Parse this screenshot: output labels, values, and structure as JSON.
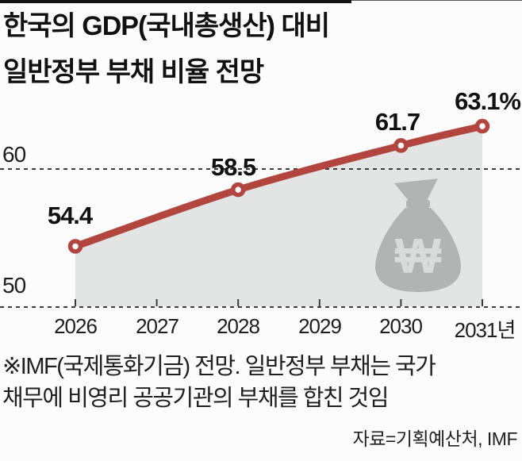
{
  "title": {
    "line1": "한국의 GDP(국내총생산) 대비",
    "line2": "일반정부 부채 비율 전망"
  },
  "chart_data": {
    "type": "area",
    "title": "한국의 GDP(국내총생산) 대비 일반정부 부채 비율 전망",
    "x": [
      2026,
      2027,
      2028,
      2029,
      2030,
      2031
    ],
    "x_labels": [
      "2026",
      "2027",
      "2028",
      "2029",
      "2030",
      "2031년"
    ],
    "series": [
      {
        "name": "일반정부 부채 비율(%)",
        "x": [
          2026,
          2028,
          2030,
          2031
        ],
        "values": [
          54.4,
          58.5,
          61.7,
          63.1
        ]
      }
    ],
    "labeled_points": [
      {
        "x": 2026,
        "value": 54.4,
        "label": "54.4"
      },
      {
        "x": 2028,
        "value": 58.5,
        "label": "58.5"
      },
      {
        "x": 2030,
        "value": 61.7,
        "label": "61.7"
      },
      {
        "x": 2031,
        "value": 63.1,
        "label": "63.1%"
      }
    ],
    "y_ticks": [
      60,
      50
    ],
    "ylim": [
      48.5,
      65.5
    ],
    "unit": "%",
    "grid": "dashed horizontal lines at y ticks, dashed baseline with year ticks",
    "legend": "none",
    "line_color": "#b2453e",
    "area_color": "#e3e5e4",
    "marker_fill": "#ffffff",
    "grid_color": "#3c3c3c"
  },
  "watermark": {
    "icon": "money-bag-won-icon",
    "currency_symbol": "₩",
    "bag_color": "#b0b5b3",
    "symbol_color": "#d8dbd9"
  },
  "footnote": {
    "line1": "※IMF(국제통화기금) 전망. 일반정부 부채는 국가",
    "line2": "채무에 비영리 공공기관의 부채를 합친 것임"
  },
  "source": "자료=기획예산처, IMF"
}
